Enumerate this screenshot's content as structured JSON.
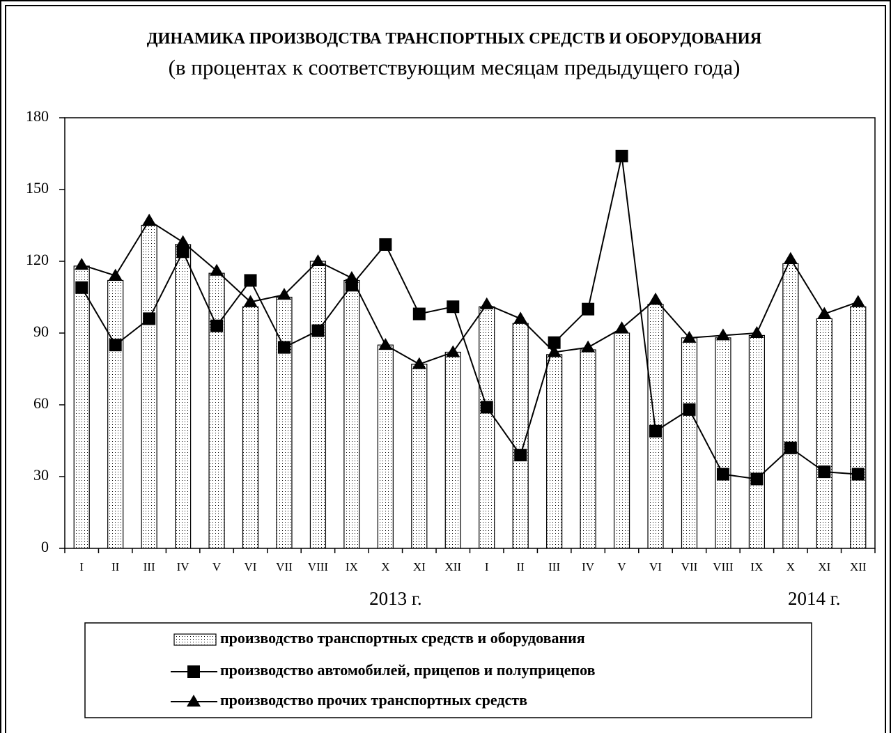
{
  "chart_data": {
    "type": "combo",
    "title": "ДИНАМИКА ПРОИЗВОДСТВА ТРАНСПОРТНЫХ СРЕДСТВ И ОБОРУДОВАНИЯ",
    "subtitle": "(в процентах к соответствующим месяцам предыдущего года)",
    "categories": [
      "I",
      "II",
      "III",
      "IV",
      "V",
      "VI",
      "VII",
      "VIII",
      "IX",
      "X",
      "XI",
      "XII",
      "I",
      "II",
      "III",
      "IV",
      "V",
      "VI",
      "VII",
      "VIII",
      "IX",
      "X",
      "XI",
      "XII"
    ],
    "year_labels": [
      "2013 г.",
      "2014 г."
    ],
    "series": [
      {
        "name": "производство транспортных средств и оборудования",
        "type": "bar",
        "color": "#000000",
        "values": [
          118,
          112,
          135,
          127,
          115,
          101,
          105,
          120,
          112,
          85,
          77,
          82,
          101,
          94,
          81,
          83,
          90,
          102,
          88,
          88,
          89,
          119,
          96,
          101
        ]
      },
      {
        "name": "производство автомобилей, прицепов и полуприцепов",
        "type": "line",
        "marker": "square",
        "color": "#000000",
        "values": [
          109,
          85,
          96,
          124,
          93,
          112,
          84,
          91,
          110,
          127,
          98,
          101,
          59,
          39,
          86,
          100,
          164,
          49,
          58,
          31,
          29,
          42,
          32,
          31
        ]
      },
      {
        "name": "производство прочих транспортных средств",
        "type": "line",
        "marker": "triangle",
        "color": "#000000",
        "values": [
          118.5,
          114,
          137,
          128,
          116,
          103,
          106,
          120,
          113,
          85,
          77,
          82,
          102,
          96,
          82,
          84,
          92,
          104,
          88,
          89,
          90,
          121,
          98,
          103
        ]
      }
    ],
    "ylim": [
      0,
      180
    ],
    "yticks": [
      0,
      30,
      60,
      90,
      120,
      150,
      180
    ],
    "grid": false
  }
}
